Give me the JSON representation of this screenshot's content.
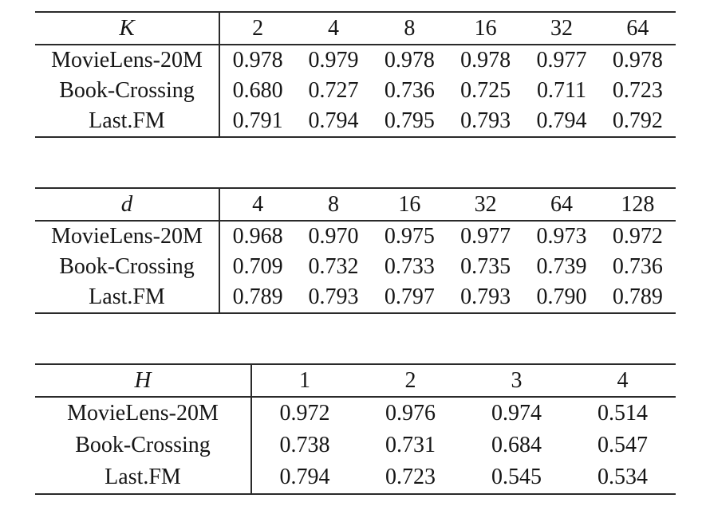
{
  "page": {
    "background_color": "#ffffff",
    "text_color": "#161616",
    "rule_color": "#2a2a2a"
  },
  "tables": [
    {
      "id": "table-k",
      "header_label": "K",
      "columns": [
        "2",
        "4",
        "8",
        "16",
        "32",
        "64"
      ],
      "rows": [
        {
          "label": "MovieLens-20M",
          "values": [
            "0.978",
            "0.979",
            "0.978",
            "0.978",
            "0.977",
            "0.978"
          ],
          "bold_index": 1
        },
        {
          "label": "Book-Crossing",
          "values": [
            "0.680",
            "0.727",
            "0.736",
            "0.725",
            "0.711",
            "0.723"
          ],
          "bold_index": 2
        },
        {
          "label": "Last.FM",
          "values": [
            "0.791",
            "0.794",
            "0.795",
            "0.793",
            "0.794",
            "0.792"
          ],
          "bold_index": 2
        }
      ]
    },
    {
      "id": "table-d",
      "header_label": "d",
      "columns": [
        "4",
        "8",
        "16",
        "32",
        "64",
        "128"
      ],
      "rows": [
        {
          "label": "MovieLens-20M",
          "values": [
            "0.968",
            "0.970",
            "0.975",
            "0.977",
            "0.973",
            "0.972"
          ],
          "bold_index": 3
        },
        {
          "label": "Book-Crossing",
          "values": [
            "0.709",
            "0.732",
            "0.733",
            "0.735",
            "0.739",
            "0.736"
          ],
          "bold_index": 4
        },
        {
          "label": "Last.FM",
          "values": [
            "0.789",
            "0.793",
            "0.797",
            "0.793",
            "0.790",
            "0.789"
          ],
          "bold_index": 2
        }
      ]
    },
    {
      "id": "table-h",
      "header_label": "H",
      "columns": [
        "1",
        "2",
        "3",
        "4"
      ],
      "rows": [
        {
          "label": "MovieLens-20M",
          "values": [
            "0.972",
            "0.976",
            "0.974",
            "0.514"
          ],
          "bold_index": 1
        },
        {
          "label": "Book-Crossing",
          "values": [
            "0.738",
            "0.731",
            "0.684",
            "0.547"
          ],
          "bold_index": 0
        },
        {
          "label": "Last.FM",
          "values": [
            "0.794",
            "0.723",
            "0.545",
            "0.534"
          ],
          "bold_index": 0
        }
      ]
    }
  ]
}
